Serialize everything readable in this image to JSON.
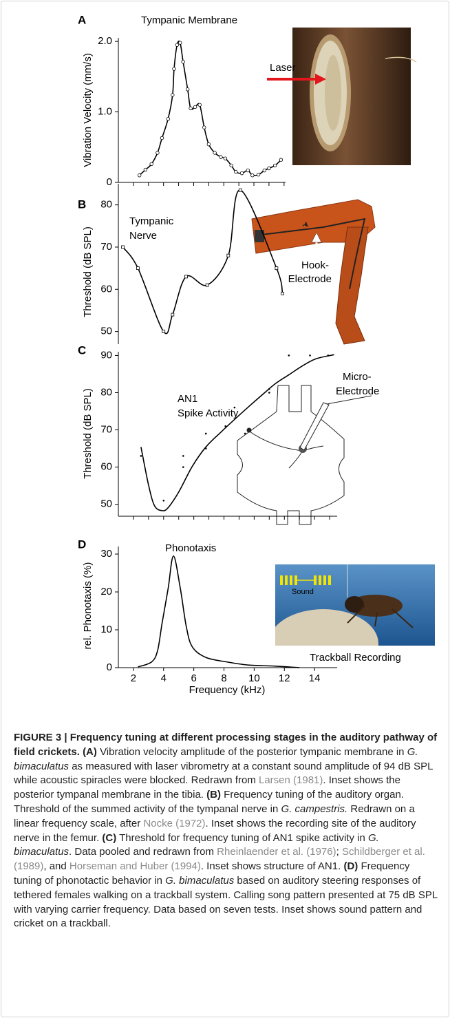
{
  "chart_data": [
    {
      "type": "line",
      "label": "A",
      "title": [
        "Tympanic Membrane"
      ],
      "ylabel": "Vibration Velocity (mm/s)",
      "xlim": [
        1,
        12.1
      ],
      "xticks": [
        2,
        3,
        4,
        5,
        6,
        7,
        8,
        9,
        10,
        11,
        12
      ],
      "ylim": [
        0,
        2.05
      ],
      "yticks": [
        0,
        {
          "value": 1,
          "label": "1.0"
        },
        {
          "value": 2,
          "label": "2.0"
        }
      ],
      "series": [
        {
          "color": "#000000",
          "marker": "circle",
          "smooth": true,
          "x": [
            2.4,
            2.8,
            3.2,
            3.6,
            3.9,
            4.3,
            4.6,
            4.7,
            4.9,
            5.1,
            5.3,
            5.6,
            5.8,
            6.1,
            6.4,
            6.7,
            7,
            7.4,
            7.8,
            8.1,
            8.5,
            8.8,
            9.2,
            9.6,
            9.9,
            10.3,
            10.7,
            11,
            11.4,
            11.8
          ],
          "values": [
            0.1,
            0.18,
            0.26,
            0.42,
            0.63,
            0.9,
            1.24,
            1.61,
            1.95,
            1.98,
            1.71,
            1.32,
            1.05,
            1.07,
            1.1,
            0.78,
            0.54,
            0.42,
            0.36,
            0.34,
            0.24,
            0.15,
            0.13,
            0.17,
            0.1,
            0.11,
            0.17,
            0.2,
            0.24,
            0.32
          ]
        }
      ],
      "annotations": [
        "Laser"
      ]
    },
    {
      "type": "line",
      "label": "B",
      "title": [
        "Tympanic",
        "Nerve"
      ],
      "ylabel": "Threshold (dB SPL)",
      "xlim": [
        1,
        12.1
      ],
      "ylim": [
        47,
        85
      ],
      "yticks": [
        50,
        60,
        70,
        80
      ],
      "series": [
        {
          "color": "#000000",
          "marker": "square",
          "smooth": true,
          "x": [
            1.3,
            2.3,
            4,
            4.6,
            5.5,
            6.9,
            8.3,
            9.1,
            11.5,
            11.9
          ],
          "values": [
            70,
            65,
            50,
            54,
            63,
            61,
            68,
            83.5,
            65,
            59
          ]
        }
      ],
      "annotations": [
        "Hook-",
        "Electrode"
      ]
    },
    {
      "type": "line",
      "label": "C",
      "title": [
        "AN1",
        "Spike Activity"
      ],
      "ylabel": "Threshold (dB SPL)",
      "xlim": [
        1,
        15.5
      ],
      "xticks": [
        2,
        3,
        4,
        5,
        6,
        7,
        8,
        9,
        10,
        11,
        12,
        13,
        14,
        15
      ],
      "ylim": [
        46.8,
        91
      ],
      "yticks": [
        50,
        60,
        70,
        80,
        90
      ],
      "series": [
        {
          "color": "#000000",
          "marker": "dot",
          "line": false,
          "x": [
            2.5,
            4,
            5.3,
            5.3,
            6.8,
            6.8,
            8.1,
            8.7,
            9.4,
            11,
            11,
            12.3,
            13.7,
            14.9
          ],
          "values": [
            63,
            51,
            63,
            60,
            69,
            65,
            71,
            76,
            69,
            81,
            80,
            90,
            90,
            90
          ]
        },
        {
          "color": "#000000",
          "smooth": true,
          "x": [
            2.5,
            3,
            3.4,
            3.9,
            4.3,
            5,
            5.9,
            6.8,
            7.8,
            8.7,
            9.6,
            10.5,
            11.4,
            12.3,
            13.2,
            14.1,
            15.3
          ],
          "values": [
            65.4,
            55.2,
            49.6,
            48.3,
            49.1,
            53.3,
            60.2,
            65.4,
            69.4,
            72.8,
            76.1,
            79.3,
            82.4,
            84.8,
            87.2,
            89.1,
            90.2
          ]
        }
      ],
      "annotations": [
        "Micro-",
        "Electrode"
      ]
    },
    {
      "type": "line",
      "label": "D",
      "title": [
        "Phonotaxis"
      ],
      "ylabel": "rel. Phonotaxis (%)",
      "xlabel": "Frequency (kHz)",
      "xlim": [
        1,
        15.5
      ],
      "xticks": [
        2,
        4,
        6,
        8,
        10,
        12,
        14
      ],
      "xtick_labels": true,
      "ylim": [
        0,
        32
      ],
      "yticks": [
        0,
        10,
        20,
        30
      ],
      "series": [
        {
          "color": "#000000",
          "smooth": true,
          "x": [
            2.3,
            3.2,
            3.6,
            3.9,
            4.3,
            4.65,
            5.1,
            5.5,
            5.9,
            6.8,
            8.2,
            9.6,
            11.4,
            13
          ],
          "values": [
            0.2,
            1.5,
            4.5,
            11.8,
            20.9,
            29.5,
            21.1,
            10.9,
            5.5,
            2.7,
            1.5,
            0.7,
            0.4,
            0
          ]
        }
      ],
      "annotations": [
        "Sound",
        "Trackball Recording"
      ]
    }
  ],
  "caption": [
    "FIGURE 3 | Frequency tuning at different processing stages in the auditory pathway of field crickets.",
    "(A)",
    "Vibration velocity amplitude of the posterior tympanic membrane in",
    "G. bimaculatus",
    "as measured with laser vibrometry at a constant sound amplitude of 94 dB SPL while acoustic spiracles were blocked. Redrawn from",
    "Larsen (1981)",
    ". Inset shows the posterior tympanal membrane in the tibia.",
    "(B)",
    "Frequency tuning of the auditory organ. Threshold of the summed activity of the tympanal nerve in",
    "G. campestris.",
    "Redrawn on a linear frequency scale, after",
    "Nocke (1972)",
    ". Inset shows the recording site of the auditory nerve in the femur.",
    "(C)",
    "Threshold for frequency tuning of AN1 spike activity in",
    "G. bimaculatus",
    ". Data pooled and redrawn from",
    "Rheinlaender et al. (1976)",
    ";",
    "Schildberger et al. (1989)",
    ", and",
    "Horseman and Huber (1994)",
    ". Inset shows structure of AN1.",
    "(D)",
    "Frequency tuning of phonotactic behavior in",
    "G. bimaculatus",
    "based on auditory steering responses of tethered females walking on a trackball system. Calling song pattern presented at 75 dB SPL with varying carrier frequency. Data based on seven tests. Inset shows sound pattern and cricket on a trackball."
  ]
}
